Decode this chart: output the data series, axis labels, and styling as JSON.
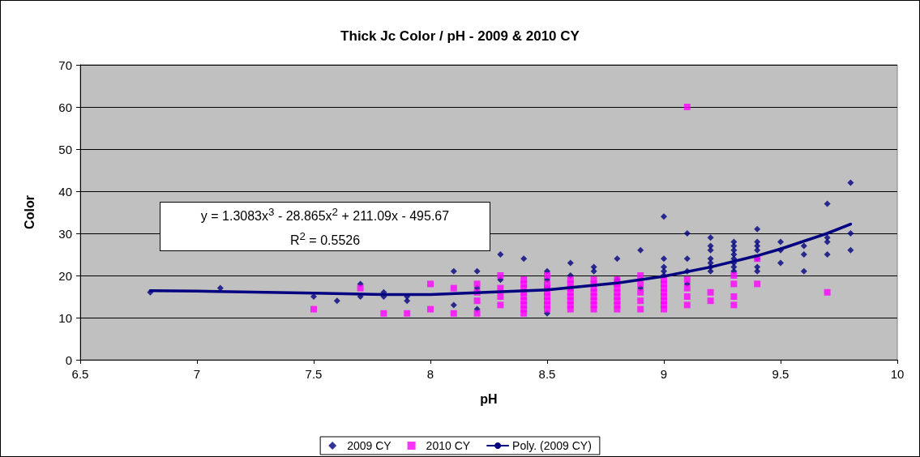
{
  "chart_data": {
    "type": "scatter",
    "title": "Thick Jc Color / pH - 2009 & 2010 CY",
    "xlabel": "pH",
    "ylabel": "Color",
    "xlim": [
      6.5,
      10
    ],
    "xticks": [
      6.5,
      7,
      7.5,
      8,
      8.5,
      9,
      9.5,
      10
    ],
    "ylim": [
      0,
      70
    ],
    "yticks": [
      0,
      10,
      20,
      30,
      40,
      50,
      60,
      70
    ],
    "grid": "y",
    "legend": "bottom",
    "annotations": [
      "y = 1.3083x$^{3}$ - 28.865x$^{2}$ + 211.09x - 495.67",
      "R$^{2}$ = 0.5526"
    ],
    "series": [
      {
        "name": "2009 CY",
        "type": "scatter",
        "marker": "diamond",
        "color": "#000080",
        "x": [
          6.8,
          7.1,
          7.5,
          7.6,
          7.7,
          7.7,
          7.8,
          7.8,
          7.9,
          7.9,
          8.1,
          8.1,
          8.2,
          8.2,
          8.2,
          8.3,
          8.3,
          8.4,
          8.5,
          8.5,
          8.5,
          8.5,
          8.6,
          8.6,
          8.6,
          8.7,
          8.7,
          8.8,
          8.8,
          8.9,
          8.9,
          9,
          9,
          9,
          9,
          9,
          9.1,
          9.1,
          9.1,
          9.1,
          9.2,
          9.2,
          9.2,
          9.2,
          9.2,
          9.2,
          9.2,
          9.3,
          9.3,
          9.3,
          9.3,
          9.3,
          9.3,
          9.3,
          9.3,
          9.4,
          9.4,
          9.4,
          9.4,
          9.4,
          9.4,
          9.4,
          9.5,
          9.5,
          9.5,
          9.6,
          9.6,
          9.6,
          9.7,
          9.7,
          9.7,
          9.7,
          9.8,
          9.8,
          9.8
        ],
        "values": [
          16,
          17,
          15,
          14,
          18,
          15,
          16,
          15,
          15,
          14,
          21,
          13,
          21,
          17,
          12,
          25,
          19,
          24,
          21,
          19,
          17,
          11,
          23,
          20,
          17,
          22,
          21,
          24,
          19,
          26,
          17,
          34,
          24,
          22,
          21,
          20,
          30,
          24,
          21,
          18,
          29,
          27,
          26,
          24,
          23,
          22,
          21,
          28,
          27,
          26,
          25,
          24,
          23,
          22,
          21,
          31,
          28,
          27,
          26,
          24,
          22,
          21,
          28,
          26,
          23,
          27,
          25,
          21,
          37,
          29,
          28,
          25,
          42,
          30,
          26
        ]
      },
      {
        "name": "2010 CY",
        "type": "scatter",
        "marker": "square",
        "color": "#ff00ff",
        "x": [
          7.5,
          7.7,
          7.8,
          7.9,
          8,
          8,
          8.1,
          8.1,
          8.2,
          8.2,
          8.2,
          8.2,
          8.3,
          8.3,
          8.3,
          8.3,
          8.4,
          8.4,
          8.4,
          8.4,
          8.4,
          8.4,
          8.4,
          8.4,
          8.4,
          8.5,
          8.5,
          8.5,
          8.5,
          8.5,
          8.5,
          8.5,
          8.5,
          8.6,
          8.6,
          8.6,
          8.6,
          8.6,
          8.6,
          8.6,
          8.6,
          8.7,
          8.7,
          8.7,
          8.7,
          8.7,
          8.7,
          8.7,
          8.7,
          8.8,
          8.8,
          8.8,
          8.8,
          8.8,
          8.8,
          8.8,
          8.8,
          8.9,
          8.9,
          8.9,
          8.9,
          8.9,
          9,
          9,
          9,
          9,
          9,
          9,
          9,
          9,
          9.1,
          9.1,
          9.1,
          9.1,
          9.1,
          9.2,
          9.2,
          9.3,
          9.3,
          9.3,
          9.3,
          9.4,
          9.4,
          9.7
        ],
        "values": [
          12,
          17,
          11,
          11,
          18,
          12,
          17,
          11,
          18,
          16,
          14,
          11,
          20,
          17,
          15,
          13,
          19,
          18,
          17,
          16,
          15,
          14,
          13,
          12,
          11,
          20,
          18,
          17,
          16,
          15,
          14,
          13,
          12,
          19,
          18,
          17,
          16,
          15,
          14,
          13,
          12,
          19,
          18,
          17,
          16,
          15,
          14,
          13,
          12,
          19,
          18,
          17,
          16,
          15,
          14,
          13,
          12,
          20,
          18,
          16,
          14,
          12,
          19,
          18,
          17,
          16,
          15,
          14,
          13,
          12,
          60,
          19,
          17,
          15,
          13,
          16,
          14,
          20,
          18,
          15,
          13,
          24,
          18,
          16
        ]
      },
      {
        "name": "Poly. (2009 CY)",
        "type": "line",
        "marker": "none",
        "line_style": "solid",
        "color": "#000080",
        "x": [
          6.8,
          7,
          7.5,
          7.8,
          8,
          8.5,
          8.8,
          9,
          9.2,
          9.4,
          9.5,
          9.7,
          9.8
        ],
        "values": [
          16.4,
          16.3,
          15.8,
          15.5,
          15.5,
          16.6,
          18.2,
          19.8,
          22,
          24.7,
          26.3,
          30,
          32.2
        ]
      }
    ]
  }
}
